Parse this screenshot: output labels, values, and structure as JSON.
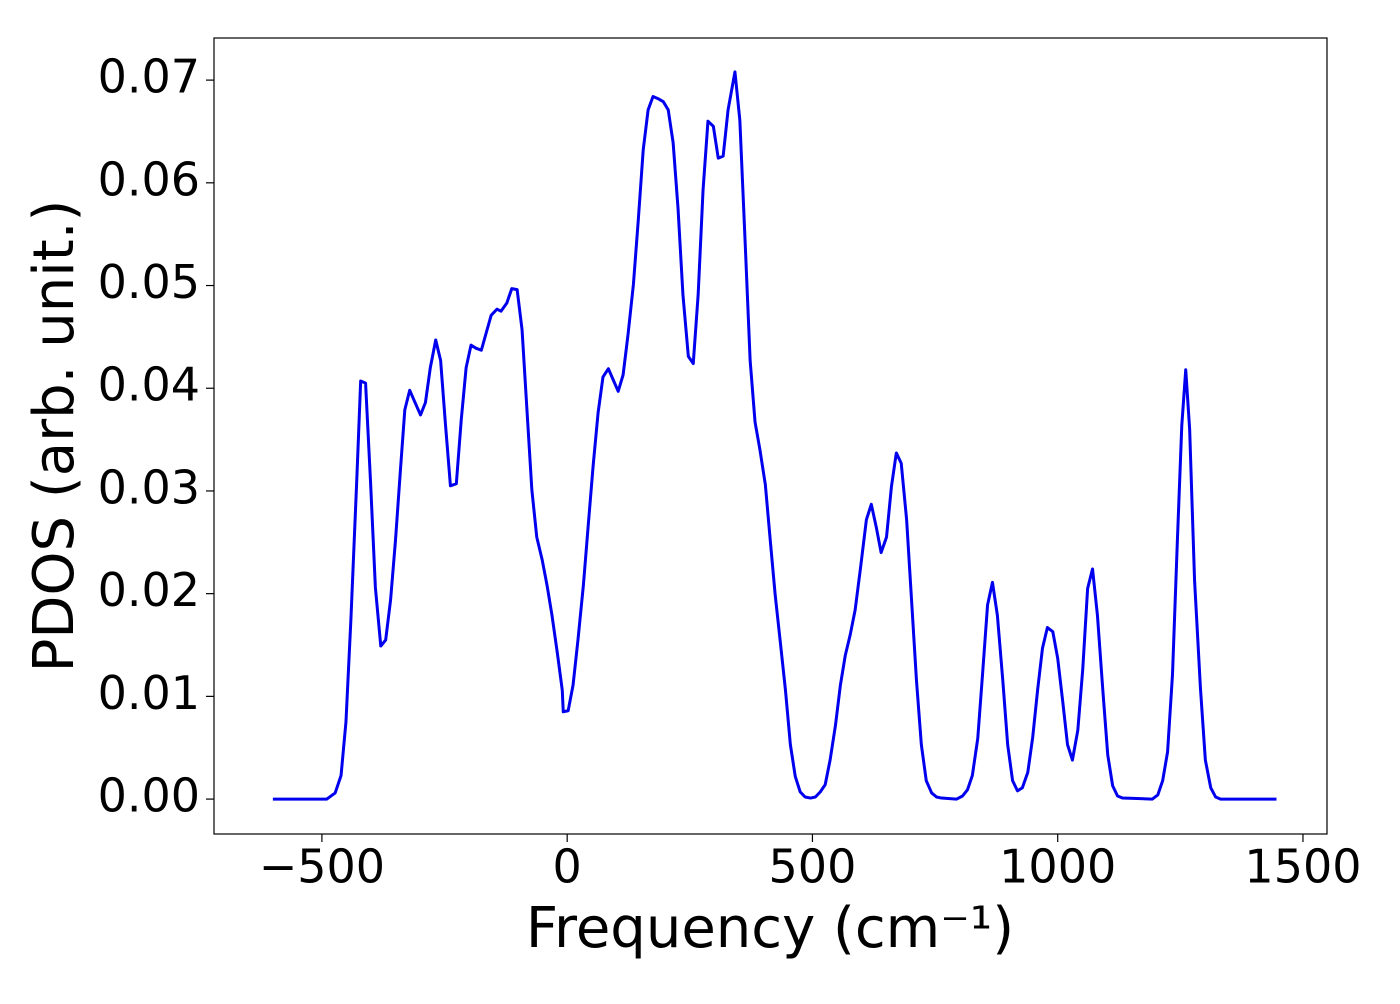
{
  "chart_data": {
    "type": "line",
    "xlabel": "Frequency (cm⁻¹)",
    "ylabel": "PDOS (arb. unit.)",
    "xlim": [
      -720,
      1549
    ],
    "ylim": [
      -0.0034,
      0.0741
    ],
    "xticks": [
      {
        "value": -500,
        "label": "−500"
      },
      0,
      500,
      1000,
      1500
    ],
    "yticks": [
      {
        "value": 0,
        "label": "0.00"
      },
      0.01,
      0.02,
      0.03,
      0.04,
      0.05,
      0.06,
      0.07
    ],
    "grid": false,
    "x": [
      -600,
      -490,
      -473,
      -461,
      -451,
      -441,
      -429,
      -421,
      -411,
      -401,
      -391,
      -380,
      -370,
      -360,
      -350,
      -340,
      -331,
      -321,
      -311,
      -299,
      -289,
      -279,
      -268,
      -258,
      -248,
      -238,
      -226,
      -216,
      -206,
      -196,
      -186,
      -175,
      -165,
      -155,
      -143,
      -135,
      -123,
      -113,
      -102,
      -92,
      -82,
      -72,
      -62,
      -51,
      -41,
      -31,
      -20,
      -10,
      -8,
      2,
      12,
      22,
      33,
      43,
      53,
      63,
      73,
      84,
      94,
      104,
      114,
      124,
      135,
      145,
      155,
      165,
      175,
      185,
      196,
      206,
      216,
      226,
      236,
      247,
      257,
      267,
      277,
      287,
      298,
      308,
      318,
      328,
      342,
      352,
      363,
      373,
      383,
      393,
      404,
      414,
      424,
      434,
      445,
      455,
      465,
      475,
      485,
      496,
      506,
      516,
      526,
      536,
      547,
      557,
      567,
      577,
      587,
      598,
      610,
      620,
      630,
      640,
      651,
      661,
      671,
      681,
      692,
      702,
      712,
      722,
      732,
      743,
      753,
      763,
      794,
      806,
      816,
      826,
      837,
      847,
      857,
      867,
      877,
      888,
      898,
      908,
      918,
      928,
      939,
      949,
      959,
      969,
      979,
      990,
      1000,
      1010,
      1020,
      1030,
      1041,
      1051,
      1061,
      1071,
      1081,
      1092,
      1102,
      1112,
      1122,
      1132,
      1193,
      1204,
      1214,
      1224,
      1234,
      1244,
      1253,
      1261,
      1269,
      1279,
      1291,
      1301,
      1312,
      1322,
      1332,
      1446
    ],
    "series": [
      {
        "color": "#0000ee",
        "values": [
          0,
          0,
          0.0006,
          0.0023,
          0.0075,
          0.0174,
          0.031,
          0.0407,
          0.0405,
          0.031,
          0.0206,
          0.0149,
          0.0155,
          0.0194,
          0.0252,
          0.032,
          0.0379,
          0.0398,
          0.0387,
          0.0374,
          0.0386,
          0.042,
          0.0447,
          0.0427,
          0.0364,
          0.0305,
          0.0307,
          0.0369,
          0.042,
          0.0442,
          0.0439,
          0.0437,
          0.0454,
          0.0471,
          0.0477,
          0.0475,
          0.0483,
          0.0497,
          0.0496,
          0.0457,
          0.0379,
          0.0301,
          0.0255,
          0.0233,
          0.0208,
          0.0179,
          0.0142,
          0.0106,
          0.0085,
          0.0086,
          0.0111,
          0.0155,
          0.0208,
          0.0267,
          0.0325,
          0.0376,
          0.0411,
          0.0419,
          0.0408,
          0.0397,
          0.0413,
          0.0452,
          0.0501,
          0.0564,
          0.0632,
          0.0671,
          0.0684,
          0.0682,
          0.0679,
          0.0671,
          0.0639,
          0.0575,
          0.0491,
          0.0431,
          0.0424,
          0.0491,
          0.0593,
          0.066,
          0.0655,
          0.0624,
          0.0626,
          0.0671,
          0.0708,
          0.0661,
          0.054,
          0.0427,
          0.0367,
          0.034,
          0.0306,
          0.0252,
          0.0199,
          0.0155,
          0.0106,
          0.0053,
          0.0022,
          0.0007,
          0.0002,
          0.0001,
          0.0002,
          0.0007,
          0.0014,
          0.0038,
          0.0072,
          0.0111,
          0.014,
          0.016,
          0.0184,
          0.0225,
          0.0272,
          0.0287,
          0.0265,
          0.024,
          0.0255,
          0.0304,
          0.0337,
          0.0327,
          0.0272,
          0.0194,
          0.0116,
          0.0053,
          0.0018,
          0.0006,
          0.0002,
          0.0001,
          0,
          0.0003,
          0.0009,
          0.0023,
          0.0059,
          0.0123,
          0.0189,
          0.0211,
          0.0179,
          0.0116,
          0.0053,
          0.0018,
          0.0008,
          0.0011,
          0.0026,
          0.006,
          0.0106,
          0.0147,
          0.0167,
          0.0163,
          0.0137,
          0.0096,
          0.0053,
          0.0038,
          0.0067,
          0.0126,
          0.0205,
          0.0224,
          0.0179,
          0.0106,
          0.0043,
          0.0013,
          0.0003,
          0.0001,
          0,
          0.0004,
          0.0018,
          0.0046,
          0.0121,
          0.0252,
          0.0364,
          0.0418,
          0.036,
          0.0213,
          0.0108,
          0.0038,
          0.0011,
          0.0002,
          0,
          0
        ]
      }
    ]
  }
}
